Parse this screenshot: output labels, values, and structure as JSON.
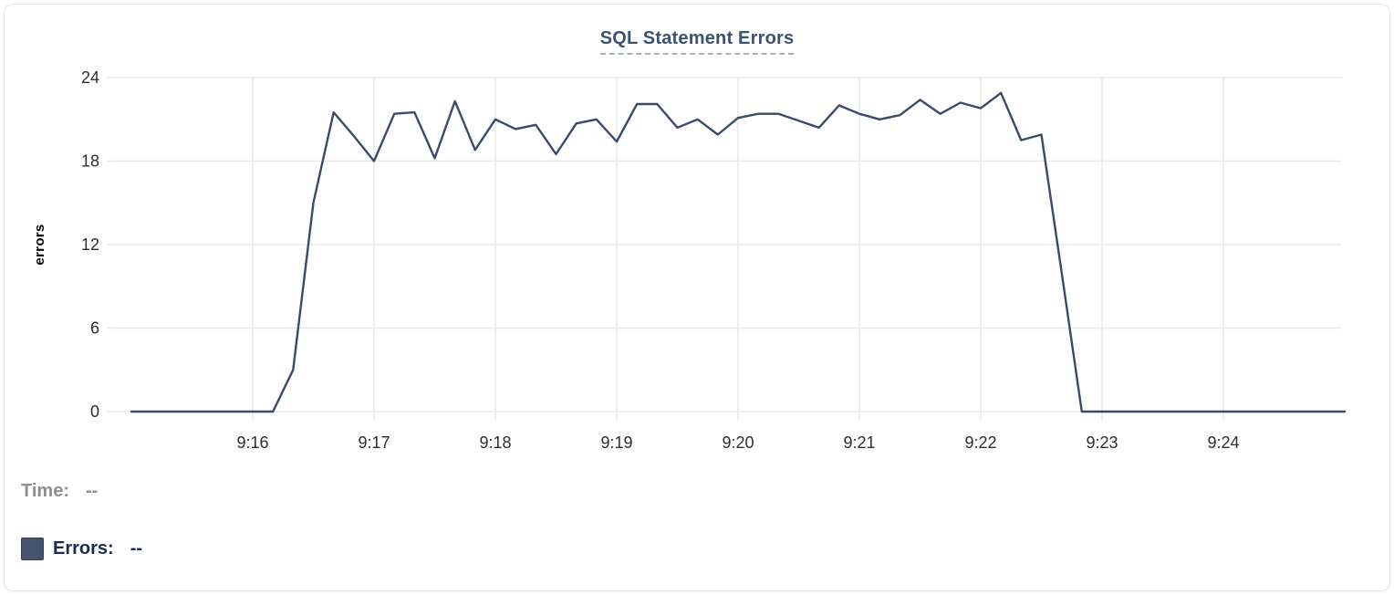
{
  "chart_data": {
    "type": "line",
    "title": "SQL Statement Errors",
    "ylabel": "errors",
    "grid": true,
    "legend_position": "none",
    "yticks": [
      0,
      6,
      12,
      18,
      24
    ],
    "ylim": [
      0,
      24
    ],
    "x_axis": {
      "start_time": "9:15:00",
      "end_time": "9:25:00",
      "tick_labels": [
        "9:16",
        "9:17",
        "9:18",
        "9:19",
        "9:20",
        "9:21",
        "9:22",
        "9:23",
        "9:24"
      ]
    },
    "sample_interval_seconds": 10,
    "series": [
      {
        "name": "Errors",
        "color": "#3b4a6b",
        "points": [
          [
            "9:15:00",
            0
          ],
          [
            "9:15:10",
            0
          ],
          [
            "9:15:20",
            0
          ],
          [
            "9:15:30",
            0
          ],
          [
            "9:15:40",
            0
          ],
          [
            "9:15:50",
            0
          ],
          [
            "9:16:00",
            0
          ],
          [
            "9:16:10",
            0
          ],
          [
            "9:16:20",
            3
          ],
          [
            "9:16:30",
            15
          ],
          [
            "9:16:40",
            21.5
          ],
          [
            "9:16:50",
            19.8
          ],
          [
            "9:17:00",
            18
          ],
          [
            "9:17:10",
            21.4
          ],
          [
            "9:17:20",
            21.5
          ],
          [
            "9:17:30",
            18.2
          ],
          [
            "9:17:40",
            22.3
          ],
          [
            "9:17:50",
            18.8
          ],
          [
            "9:18:00",
            21
          ],
          [
            "9:18:10",
            20.3
          ],
          [
            "9:18:20",
            20.6
          ],
          [
            "9:18:30",
            18.5
          ],
          [
            "9:18:40",
            20.7
          ],
          [
            "9:18:50",
            21
          ],
          [
            "9:19:00",
            19.4
          ],
          [
            "9:19:10",
            22.1
          ],
          [
            "9:19:20",
            22.1
          ],
          [
            "9:19:30",
            20.4
          ],
          [
            "9:19:40",
            21
          ],
          [
            "9:19:50",
            19.9
          ],
          [
            "9:20:00",
            21.1
          ],
          [
            "9:20:10",
            21.4
          ],
          [
            "9:20:20",
            21.4
          ],
          [
            "9:20:30",
            20.9
          ],
          [
            "9:20:40",
            20.4
          ],
          [
            "9:20:50",
            22
          ],
          [
            "9:21:00",
            21.4
          ],
          [
            "9:21:10",
            21
          ],
          [
            "9:21:20",
            21.3
          ],
          [
            "9:21:30",
            22.4
          ],
          [
            "9:21:40",
            21.4
          ],
          [
            "9:21:50",
            22.2
          ],
          [
            "9:22:00",
            21.8
          ],
          [
            "9:22:10",
            22.9
          ],
          [
            "9:22:20",
            19.5
          ],
          [
            "9:22:30",
            19.9
          ],
          [
            "9:22:40",
            10
          ],
          [
            "9:22:50",
            0
          ],
          [
            "9:23:00",
            0
          ],
          [
            "9:23:10",
            0
          ],
          [
            "9:23:20",
            0
          ],
          [
            "9:23:30",
            0
          ],
          [
            "9:23:40",
            0
          ],
          [
            "9:23:50",
            0
          ],
          [
            "9:24:00",
            0
          ],
          [
            "9:24:10",
            0
          ],
          [
            "9:24:20",
            0
          ],
          [
            "9:24:30",
            0
          ],
          [
            "9:24:40",
            0
          ],
          [
            "9:24:50",
            0
          ],
          [
            "9:25:00",
            0
          ]
        ]
      }
    ]
  },
  "readout": {
    "time_label": "Time:",
    "time_value": "--",
    "errors_label": "Errors:",
    "errors_value": "--"
  },
  "colors": {
    "line": "#3b4a6b",
    "swatch": "#44536e",
    "title": "#3d5170",
    "title_underline": "#a4b0c4",
    "grid": "#e9e9e9",
    "tick_text": "#2e2e2e",
    "time_text": "#8d8d92",
    "errors_text": "#1c2a52"
  }
}
